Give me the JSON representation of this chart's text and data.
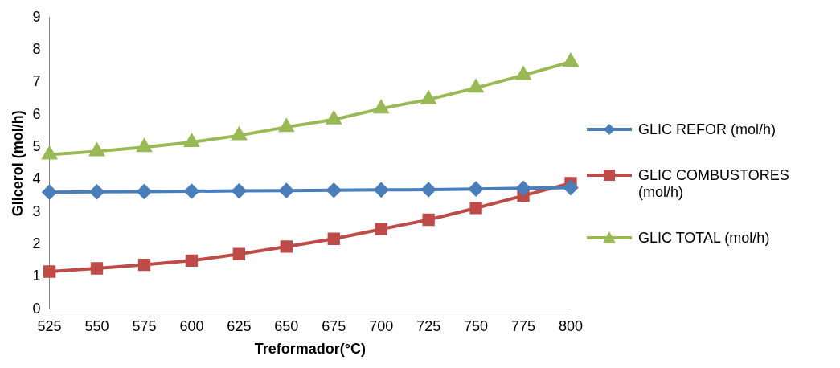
{
  "chart_data": {
    "type": "line",
    "xlabel": "Treformador(°C)",
    "ylabel": "Glicerol (mol/h)",
    "categories": [
      "525",
      "550",
      "575",
      "600",
      "625",
      "650",
      "675",
      "700",
      "725",
      "750",
      "775",
      "800"
    ],
    "series": [
      {
        "name": "GLIC REFOR (mol/h)",
        "color": "#4a7ebb",
        "marker": "diamond",
        "values": [
          3.61,
          3.62,
          3.63,
          3.64,
          3.65,
          3.66,
          3.67,
          3.68,
          3.69,
          3.71,
          3.73,
          3.75
        ]
      },
      {
        "name": "GLIC COMBUSTORES (mol/h)",
        "color": "#be4b48",
        "marker": "square",
        "values": [
          1.16,
          1.26,
          1.37,
          1.5,
          1.7,
          1.93,
          2.17,
          2.47,
          2.76,
          3.12,
          3.5,
          3.89
        ]
      },
      {
        "name": "GLIC TOTAL (mol/h)",
        "color": "#98b954",
        "marker": "triangle",
        "values": [
          4.77,
          4.87,
          5.0,
          5.15,
          5.36,
          5.62,
          5.85,
          6.19,
          6.47,
          6.83,
          7.22,
          7.63
        ]
      }
    ],
    "ylim": [
      0,
      9
    ],
    "yticks": [
      0,
      1,
      2,
      3,
      4,
      5,
      6,
      7,
      8,
      9
    ],
    "grid": false,
    "legend": "right"
  }
}
